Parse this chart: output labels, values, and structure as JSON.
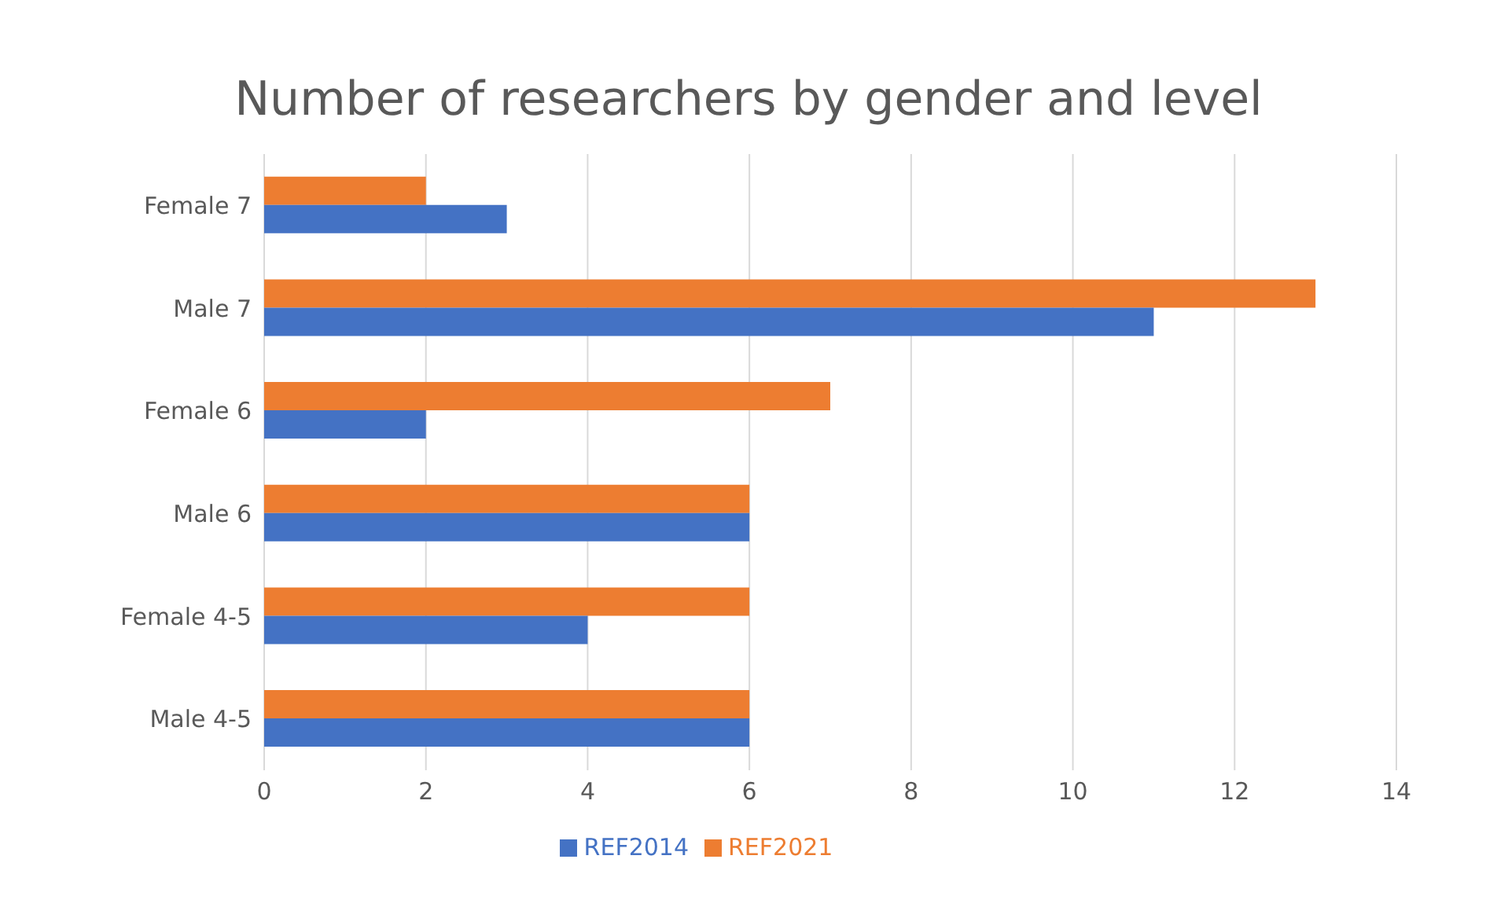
{
  "chart_data": {
    "type": "bar",
    "orientation": "horizontal",
    "title": "Number of researchers by gender and level",
    "categories": [
      "Female 7",
      "Male 7",
      "Female 6",
      "Male 6",
      "Female 4-5",
      "Male 4-5"
    ],
    "series": [
      {
        "name": "REF2021",
        "color": "#ed7d31",
        "values": [
          2,
          13,
          7,
          6,
          6,
          6
        ]
      },
      {
        "name": "REF2014",
        "color": "#4472c4",
        "values": [
          3,
          11,
          2,
          6,
          4,
          6
        ]
      }
    ],
    "xlim": [
      0,
      14
    ],
    "xticks": [
      0,
      2,
      4,
      6,
      8,
      10,
      12,
      14
    ],
    "grid": "x",
    "legend": "bottom"
  }
}
